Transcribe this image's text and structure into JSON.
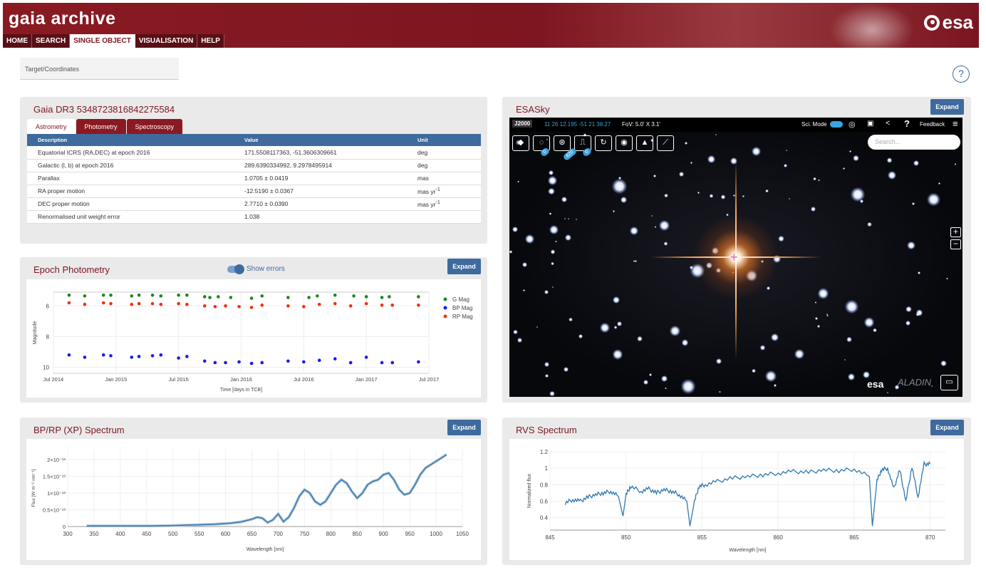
{
  "header": {
    "title": "gaia archive",
    "logo": "esa"
  },
  "nav": [
    {
      "label": "HOME"
    },
    {
      "label": "SEARCH"
    },
    {
      "label": "SINGLE OBJECT",
      "active": true
    },
    {
      "label": "VISUALISATION"
    },
    {
      "label": "HELP"
    }
  ],
  "target": {
    "placeholder": "Target/Coordinates"
  },
  "help": {
    "label": "?"
  },
  "astrometry": {
    "title": "Gaia DR3 5348723816842275584",
    "tabs": [
      "Astrometry",
      "Photometry",
      "Spectroscopy"
    ],
    "columns": [
      "Description",
      "Value",
      "Unit"
    ],
    "rows": [
      {
        "desc": "Equatorial ICRS (RA,DEC) at epoch 2016",
        "value": "171.5508117363, -51.3606309661",
        "unit": "deg",
        "sup": ""
      },
      {
        "desc": "Galactic (l, b) at epoch 2016",
        "value": "289.6390334992, 9.2978495914",
        "unit": "deg",
        "sup": ""
      },
      {
        "desc": "Parallax",
        "value": "1.0705 ± 0.0419",
        "unit": "mas",
        "sup": ""
      },
      {
        "desc": "RA proper motion",
        "value": "-12.5190 ± 0.0367",
        "unit": "mas yr",
        "sup": "-1"
      },
      {
        "desc": "DEC proper motion",
        "value": "2.7710 ± 0.0390",
        "unit": "mas yr",
        "sup": "-1"
      },
      {
        "desc": "Renormalised unit weight error",
        "value": "1.038",
        "unit": "",
        "sup": ""
      }
    ]
  },
  "epoch": {
    "title": "Epoch Photometry",
    "toggle_label": "Show errors",
    "expand": "Expand"
  },
  "esasky": {
    "title": "ESASky",
    "expand": "Expand",
    "frame": "J2000",
    "coords": "11 26 12.195 -51 21 38.27",
    "fov": "FoV: 5.0' X 3.1'",
    "sci_mode": "Sci. Mode",
    "feedback": "Feedback",
    "search_placeholder": "Search...",
    "badges": [
      "0",
      "420",
      "0"
    ],
    "logo1": "esa",
    "logo2": "ALADIN",
    "icons": [
      "layers-icon",
      "galaxy-icon",
      "catalogue-icon",
      "spectra-icon",
      "ssos-icon",
      "target-icon",
      "education-icon",
      "telescope-icon"
    ]
  },
  "xp": {
    "title": "BP/RP (XP) Spectrum",
    "expand": "Expand"
  },
  "rvs": {
    "title": "RVS Spectrum",
    "expand": "Expand"
  },
  "chart_data": [
    {
      "type": "scatter",
      "xlabel": "Time [days in TCB]",
      "ylabel": "Magnitude",
      "xticks": [
        "Jul 2014",
        "Jan 2015",
        "Jul 2015",
        "Jan 2016",
        "Jul 2016",
        "Jan 2017",
        "Jul 2017"
      ],
      "yticks": [
        6,
        8,
        10
      ],
      "ylim": [
        10.4,
        5.1
      ],
      "yinverted": true,
      "xlim": [
        0,
        36
      ],
      "legend": "right",
      "series": [
        {
          "name": "G Mag",
          "color": "#1a8a1a",
          "x": [
            1.5,
            3.0,
            4.8,
            5.5,
            7.5,
            8.2,
            9.5,
            10.3,
            12.0,
            12.8,
            14.5,
            15.0,
            15.8,
            17.0,
            19.0,
            20.0,
            22.5,
            24.5,
            25.3,
            27.0,
            28.8,
            30.0,
            31.5,
            32.2,
            35.0
          ],
          "y": [
            5.3,
            5.35,
            5.3,
            5.3,
            5.35,
            5.3,
            5.3,
            5.35,
            5.3,
            5.3,
            5.4,
            5.45,
            5.4,
            5.45,
            5.5,
            5.35,
            5.45,
            5.45,
            5.35,
            5.3,
            5.35,
            5.4,
            5.45,
            5.4,
            5.4
          ]
        },
        {
          "name": "BP Mag",
          "color": "#1a1af0",
          "x": [
            1.5,
            3.0,
            4.8,
            5.5,
            7.5,
            8.2,
            9.5,
            10.3,
            12.0,
            12.8,
            14.5,
            15.5,
            16.5,
            17.8,
            19.0,
            20.0,
            22.5,
            24.0,
            25.5,
            27.0,
            28.5,
            30.0,
            31.5,
            32.5,
            35.0
          ],
          "y": [
            9.2,
            9.35,
            9.2,
            9.25,
            9.35,
            9.3,
            9.25,
            9.2,
            9.4,
            9.3,
            9.6,
            9.7,
            9.7,
            9.65,
            9.75,
            9.7,
            9.6,
            9.65,
            9.55,
            9.45,
            9.7,
            9.35,
            9.7,
            9.7,
            9.65
          ]
        },
        {
          "name": "RP Mag",
          "color": "#f03010",
          "x": [
            1.5,
            3.0,
            4.8,
            5.5,
            7.5,
            8.2,
            9.5,
            10.3,
            12.0,
            12.8,
            14.5,
            15.5,
            16.5,
            17.8,
            19.0,
            20.0,
            22.5,
            24.0,
            25.5,
            27.0,
            28.5,
            30.0,
            31.5,
            32.5,
            35.0
          ],
          "y": [
            5.8,
            5.9,
            5.8,
            5.85,
            5.9,
            5.85,
            5.85,
            5.9,
            5.85,
            5.9,
            6.0,
            6.05,
            6.0,
            6.05,
            6.1,
            5.95,
            6.0,
            6.05,
            5.9,
            5.85,
            6.0,
            5.85,
            5.95,
            5.95,
            5.95
          ]
        }
      ]
    },
    {
      "type": "line",
      "xlabel": "Wavelength [nm]",
      "ylabel": "Flux [W m⁻² nm⁻¹]",
      "xlim": [
        300,
        1050
      ],
      "xticks": [
        300,
        350,
        400,
        450,
        500,
        550,
        600,
        650,
        700,
        750,
        800,
        850,
        900,
        950,
        1000,
        1050
      ],
      "ylim": [
        0,
        2.3e-13
      ],
      "yticklabels": [
        "0",
        "0.5×10⁻¹³",
        "1×10⁻¹³",
        "1.5×10⁻¹³",
        "2×10⁻¹³"
      ],
      "x": [
        336,
        380,
        420,
        460,
        500,
        540,
        580,
        610,
        630,
        650,
        660,
        670,
        680,
        690,
        700,
        710,
        720,
        730,
        740,
        750,
        760,
        770,
        780,
        790,
        800,
        810,
        820,
        830,
        840,
        850,
        860,
        870,
        880,
        890,
        900,
        910,
        920,
        930,
        940,
        950,
        960,
        970,
        980,
        990,
        1000,
        1010,
        1020
      ],
      "y": [
        0.02,
        0.02,
        0.02,
        0.02,
        0.03,
        0.05,
        0.07,
        0.1,
        0.14,
        0.22,
        0.28,
        0.25,
        0.12,
        0.2,
        0.38,
        0.15,
        0.28,
        0.55,
        0.9,
        1.1,
        1.0,
        0.75,
        0.65,
        0.75,
        1.0,
        1.25,
        1.4,
        1.3,
        1.05,
        0.85,
        1.0,
        1.25,
        1.35,
        1.4,
        1.55,
        1.6,
        1.4,
        1.1,
        0.95,
        1.0,
        1.25,
        1.55,
        1.75,
        1.85,
        1.95,
        2.05,
        2.15
      ]
    },
    {
      "type": "line",
      "xlabel": "Wavelength [nm]",
      "ylabel": "Normalized flux",
      "xlim": [
        845,
        871
      ],
      "xticks": [
        845,
        850,
        855,
        860,
        865,
        870
      ],
      "ylim": [
        0.25,
        1.2
      ],
      "yticks": [
        0.4,
        0.6,
        0.8,
        1,
        1.2
      ],
      "x": [
        846,
        846.5,
        847,
        847.5,
        848,
        848.5,
        849,
        849.5,
        849.8,
        850,
        850.3,
        851,
        851.5,
        852,
        852.5,
        853,
        853.5,
        854,
        854.2,
        854.5,
        854.8,
        855.2,
        856,
        857,
        858,
        859,
        860,
        861,
        862,
        863,
        864,
        865,
        866,
        866.2,
        866.5,
        866.8,
        867.2,
        867.6,
        868,
        868.4,
        868.8,
        869.2,
        869.6,
        870
      ],
      "y": [
        0.58,
        0.62,
        0.6,
        0.65,
        0.68,
        0.7,
        0.72,
        0.66,
        0.42,
        0.68,
        0.78,
        0.72,
        0.75,
        0.7,
        0.74,
        0.72,
        0.68,
        0.6,
        0.3,
        0.6,
        0.78,
        0.8,
        0.84,
        0.88,
        0.9,
        0.92,
        0.94,
        0.96,
        0.95,
        0.98,
        0.97,
        0.99,
        0.9,
        0.3,
        0.85,
        0.98,
        1.0,
        0.75,
        0.98,
        0.6,
        1.02,
        0.65,
        1.05,
        1.05
      ]
    }
  ]
}
